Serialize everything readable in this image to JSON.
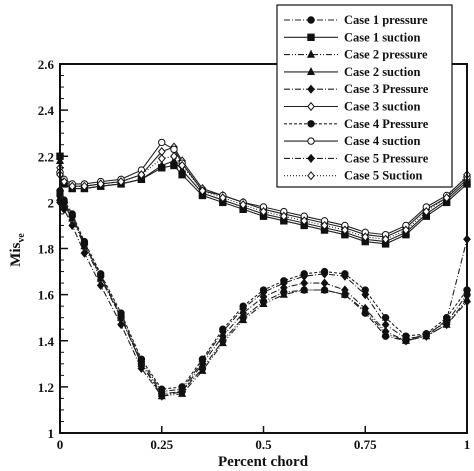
{
  "chart_data": {
    "type": "line",
    "title": "",
    "xlabel": "Percent chord",
    "ylabel_main": "Mis",
    "ylabel_sub": "ve",
    "xlim": [
      0,
      1
    ],
    "ylim": [
      1,
      2.6
    ],
    "xticks": [
      0,
      0.25,
      0.5,
      0.75,
      1
    ],
    "xtick_labels": [
      "0",
      "0.25",
      "0.5",
      "0.75",
      "1"
    ],
    "yticks": [
      1,
      1.2,
      1.4,
      1.6,
      1.8,
      2,
      2.2,
      2.4,
      2.6
    ],
    "ytick_labels": [
      "1",
      "1.2",
      "1.4",
      "1.6",
      "1.8",
      "2",
      "2.2",
      "2.4",
      "2.6"
    ],
    "legend_position": "top-right",
    "grid": false,
    "series": [
      {
        "name": "Case 1 pressure",
        "dash": "6,2,1,2",
        "marker": "circle-filled",
        "x": [
          0,
          0.01,
          0.03,
          0.06,
          0.1,
          0.15,
          0.2,
          0.25,
          0.3,
          0.35,
          0.4,
          0.45,
          0.5,
          0.55,
          0.6,
          0.65,
          0.7,
          0.75,
          0.8,
          0.85,
          0.9,
          0.95,
          1
        ],
        "y": [
          2.03,
          2.0,
          1.94,
          1.82,
          1.68,
          1.5,
          1.3,
          1.17,
          1.18,
          1.28,
          1.4,
          1.5,
          1.57,
          1.61,
          1.62,
          1.62,
          1.6,
          1.52,
          1.42,
          1.4,
          1.43,
          1.48,
          1.6
        ]
      },
      {
        "name": "Case 1 suction",
        "dash": "",
        "marker": "square-filled",
        "x": [
          0,
          0.01,
          0.03,
          0.06,
          0.1,
          0.15,
          0.2,
          0.25,
          0.28,
          0.3,
          0.35,
          0.4,
          0.45,
          0.5,
          0.55,
          0.6,
          0.65,
          0.7,
          0.75,
          0.8,
          0.85,
          0.9,
          0.95,
          1
        ],
        "y": [
          2.2,
          2.08,
          2.06,
          2.06,
          2.07,
          2.08,
          2.1,
          2.15,
          2.16,
          2.12,
          2.03,
          2.0,
          1.97,
          1.94,
          1.92,
          1.9,
          1.88,
          1.86,
          1.83,
          1.82,
          1.86,
          1.94,
          2.0,
          2.08
        ]
      },
      {
        "name": "Case 2 pressure",
        "dash": "6,2,1,2,1,2",
        "marker": "triangle-filled",
        "x": [
          0,
          0.01,
          0.03,
          0.06,
          0.1,
          0.15,
          0.2,
          0.25,
          0.3,
          0.35,
          0.4,
          0.45,
          0.5,
          0.55,
          0.6,
          0.65,
          0.7,
          0.75,
          0.8,
          0.85,
          0.9,
          0.95,
          1
        ],
        "y": [
          2.02,
          1.99,
          1.93,
          1.81,
          1.67,
          1.5,
          1.3,
          1.16,
          1.17,
          1.27,
          1.39,
          1.49,
          1.56,
          1.6,
          1.62,
          1.62,
          1.6,
          1.53,
          1.43,
          1.4,
          1.42,
          1.47,
          1.58
        ]
      },
      {
        "name": "Case 2 suction",
        "dash": "",
        "marker": "triangle-filled",
        "x": [
          0,
          0.01,
          0.03,
          0.06,
          0.1,
          0.15,
          0.2,
          0.25,
          0.28,
          0.3,
          0.35,
          0.4,
          0.45,
          0.5,
          0.55,
          0.6,
          0.65,
          0.7,
          0.75,
          0.8,
          0.85,
          0.9,
          0.95,
          1
        ],
        "y": [
          2.18,
          2.08,
          2.06,
          2.06,
          2.07,
          2.08,
          2.1,
          2.16,
          2.18,
          2.14,
          2.04,
          2.01,
          1.98,
          1.95,
          1.93,
          1.91,
          1.89,
          1.87,
          1.84,
          1.83,
          1.87,
          1.95,
          2.01,
          2.09
        ]
      },
      {
        "name": "Case 3 Pressure",
        "dash": "6,2,1,2",
        "marker": "diamond-filled",
        "x": [
          0,
          0.01,
          0.03,
          0.06,
          0.1,
          0.15,
          0.2,
          0.25,
          0.3,
          0.35,
          0.4,
          0.45,
          0.5,
          0.55,
          0.6,
          0.65,
          0.7,
          0.75,
          0.8,
          0.85,
          0.9,
          0.95,
          1
        ],
        "y": [
          2.0,
          1.97,
          1.9,
          1.78,
          1.64,
          1.47,
          1.28,
          1.16,
          1.18,
          1.3,
          1.42,
          1.52,
          1.59,
          1.63,
          1.65,
          1.65,
          1.62,
          1.54,
          1.44,
          1.4,
          1.42,
          1.47,
          1.57
        ]
      },
      {
        "name": "Case 3 suction",
        "dash": "",
        "marker": "diamond-open",
        "x": [
          0,
          0.01,
          0.03,
          0.06,
          0.1,
          0.15,
          0.2,
          0.25,
          0.28,
          0.3,
          0.35,
          0.4,
          0.45,
          0.5,
          0.55,
          0.6,
          0.65,
          0.7,
          0.75,
          0.8,
          0.85,
          0.9,
          0.95,
          1
        ],
        "y": [
          2.15,
          2.09,
          2.07,
          2.07,
          2.08,
          2.09,
          2.12,
          2.22,
          2.24,
          2.18,
          2.06,
          2.03,
          2.0,
          1.97,
          1.95,
          1.93,
          1.91,
          1.89,
          1.86,
          1.85,
          1.89,
          1.97,
          2.02,
          2.1
        ]
      },
      {
        "name": "Case 4 Pressure",
        "dash": "3,2",
        "marker": "circle-filled",
        "x": [
          0,
          0.01,
          0.03,
          0.06,
          0.1,
          0.15,
          0.2,
          0.25,
          0.3,
          0.35,
          0.4,
          0.45,
          0.5,
          0.55,
          0.6,
          0.65,
          0.7,
          0.75,
          0.8,
          0.85,
          0.9,
          0.95,
          1
        ],
        "y": [
          2.05,
          2.01,
          1.95,
          1.83,
          1.69,
          1.52,
          1.32,
          1.19,
          1.2,
          1.32,
          1.45,
          1.55,
          1.62,
          1.66,
          1.69,
          1.7,
          1.69,
          1.62,
          1.5,
          1.42,
          1.43,
          1.5,
          1.62
        ]
      },
      {
        "name": "Case 4 suction",
        "dash": "",
        "marker": "circle-open",
        "x": [
          0,
          0.01,
          0.03,
          0.06,
          0.1,
          0.15,
          0.2,
          0.25,
          0.28,
          0.3,
          0.35,
          0.4,
          0.45,
          0.5,
          0.55,
          0.6,
          0.65,
          0.7,
          0.75,
          0.8,
          0.85,
          0.9,
          0.95,
          1
        ],
        "y": [
          2.13,
          2.1,
          2.08,
          2.08,
          2.09,
          2.1,
          2.14,
          2.26,
          2.23,
          2.17,
          2.05,
          2.03,
          2.0,
          1.98,
          1.96,
          1.94,
          1.92,
          1.9,
          1.87,
          1.86,
          1.9,
          1.98,
          2.03,
          2.11
        ]
      },
      {
        "name": "Case 5 Pressure",
        "dash": "6,2,1,2",
        "marker": "diamond-filled",
        "x": [
          0,
          0.01,
          0.03,
          0.06,
          0.1,
          0.15,
          0.2,
          0.25,
          0.3,
          0.35,
          0.4,
          0.45,
          0.5,
          0.55,
          0.6,
          0.65,
          0.7,
          0.75,
          0.8,
          0.85,
          0.9,
          0.95,
          1
        ],
        "y": [
          2.04,
          2.0,
          1.94,
          1.82,
          1.68,
          1.51,
          1.31,
          1.18,
          1.19,
          1.31,
          1.44,
          1.54,
          1.61,
          1.65,
          1.68,
          1.69,
          1.68,
          1.6,
          1.47,
          1.41,
          1.42,
          1.49,
          1.84
        ]
      },
      {
        "name": "Case 5 Suction",
        "dash": "1,2",
        "marker": "diamond-open",
        "x": [
          0,
          0.01,
          0.03,
          0.06,
          0.1,
          0.15,
          0.2,
          0.25,
          0.28,
          0.3,
          0.35,
          0.4,
          0.45,
          0.5,
          0.55,
          0.6,
          0.65,
          0.7,
          0.75,
          0.8,
          0.85,
          0.9,
          0.95,
          1
        ],
        "y": [
          2.12,
          2.09,
          2.07,
          2.07,
          2.08,
          2.09,
          2.12,
          2.19,
          2.2,
          2.16,
          2.05,
          2.02,
          1.99,
          1.96,
          1.94,
          1.92,
          1.9,
          1.88,
          1.85,
          1.84,
          1.88,
          1.96,
          2.02,
          2.12
        ]
      }
    ]
  }
}
